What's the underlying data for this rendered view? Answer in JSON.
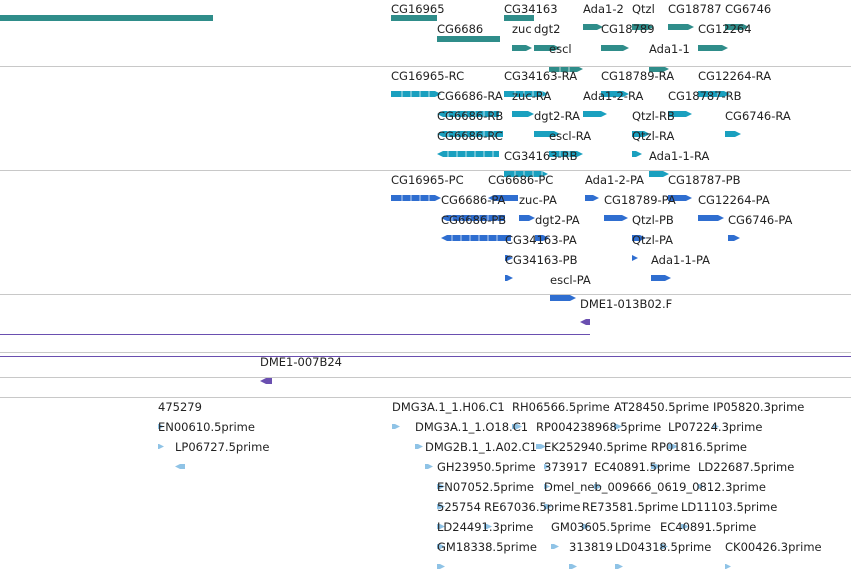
{
  "colors": {
    "gene": "#2f8d8a",
    "mrna": "#1aa0bf",
    "cds": "#2f6ed0",
    "clone": "#6a4fb0",
    "est": "#8fc3e6"
  },
  "tracks": [
    {
      "name": "gene",
      "features": [
        {
          "label": "",
          "icon": "bar"
        },
        {
          "label": "CG16965",
          "icon": "bar"
        },
        {
          "label": "CG34163",
          "icon": "bar"
        },
        {
          "label": "Ada1-2",
          "icon": "arrow-right"
        },
        {
          "label": "Qtzl",
          "icon": "arrow-right"
        },
        {
          "label": "CG18787",
          "icon": "arrow-right"
        },
        {
          "label": "CG6746",
          "icon": "arrow-right"
        },
        {
          "label": "CG6686",
          "icon": "bar"
        },
        {
          "label": "zuc",
          "icon": "arrow-right"
        },
        {
          "label": "dgt2",
          "icon": "arrow-right"
        },
        {
          "label": "CG18789",
          "icon": "arrow-right"
        },
        {
          "label": "CG12264",
          "icon": "arrow-right"
        },
        {
          "label": "escl",
          "icon": "arrow-right"
        },
        {
          "label": "Ada1-1",
          "icon": "arrow-right"
        }
      ]
    },
    {
      "name": "mrna",
      "features": [
        {
          "label": "CG16965-RC",
          "icon": "arrow-right"
        },
        {
          "label": "CG34163-RA",
          "icon": "arrow-right"
        },
        {
          "label": "CG18789-RA",
          "icon": "arrow-right"
        },
        {
          "label": "CG12264-RA",
          "icon": "arrow-right"
        },
        {
          "label": "CG6686-RA",
          "icon": "arrow-left"
        },
        {
          "label": "zuc-RA",
          "icon": "arrow-right"
        },
        {
          "label": "Ada1-2-RA",
          "icon": "arrow-right"
        },
        {
          "label": "CG18787-RB",
          "icon": "arrow-right"
        },
        {
          "label": "CG6686-RB",
          "icon": "arrow-left"
        },
        {
          "label": "dgt2-RA",
          "icon": "arrow-right"
        },
        {
          "label": "Qtzl-RB",
          "icon": "arrow-right"
        },
        {
          "label": "CG6746-RA",
          "icon": "arrow-right"
        },
        {
          "label": "CG6686-RC",
          "icon": "arrow-left"
        },
        {
          "label": "escl-RA",
          "icon": "arrow-right"
        },
        {
          "label": "Qtzl-RA",
          "icon": "arrow-right"
        },
        {
          "label": "CG34163-RB",
          "icon": "arrow-right"
        },
        {
          "label": "Ada1-1-RA",
          "icon": "arrow-right"
        }
      ]
    },
    {
      "name": "cds",
      "features": [
        {
          "label": "CG16965-PC",
          "icon": "arrow-right"
        },
        {
          "label": "CG6686-PC",
          "icon": "arrow-left"
        },
        {
          "label": "Ada1-2-PA",
          "icon": "arrow-right"
        },
        {
          "label": "CG18787-PB",
          "icon": "arrow-right"
        },
        {
          "label": "CG6686-PA",
          "icon": "arrow-left"
        },
        {
          "label": "zuc-PA",
          "icon": "arrow-right"
        },
        {
          "label": "CG18789-PA",
          "icon": "arrow-right"
        },
        {
          "label": "CG12264-PA",
          "icon": "arrow-right"
        },
        {
          "label": "CG6686-PB",
          "icon": "arrow-left"
        },
        {
          "label": "dgt2-PA",
          "icon": "arrow-right"
        },
        {
          "label": "Qtzl-PB",
          "icon": "arrow-right"
        },
        {
          "label": "CG6746-PA",
          "icon": "arrow-right"
        },
        {
          "label": "CG34163-PA",
          "icon": "arrow-right"
        },
        {
          "label": "Qtzl-PA",
          "icon": "arrow-right"
        },
        {
          "label": "CG34163-PB",
          "icon": "arrow-right"
        },
        {
          "label": "Ada1-1-PA",
          "icon": "arrow-right"
        },
        {
          "label": "escl-PA",
          "icon": "arrow-right"
        }
      ]
    },
    {
      "name": "clone-a",
      "features": [
        {
          "label": "DME1-013B02.F",
          "icon": "arrow-left"
        },
        {
          "label": "",
          "icon": "line"
        }
      ]
    },
    {
      "name": "clone-b",
      "features": [
        {
          "label": "",
          "icon": "line"
        },
        {
          "label": "DME1-007B24",
          "icon": "arrow-left"
        }
      ]
    },
    {
      "name": "empty",
      "features": []
    },
    {
      "name": "est",
      "features": [
        {
          "label": "475279",
          "icon": "arrow-right"
        },
        {
          "label": "EN00610.5prime",
          "icon": "arrow-right"
        },
        {
          "label": "LP06727.5prime",
          "icon": "arrow-left"
        },
        {
          "label": "DMG3A.1_1.H06.C1",
          "icon": "arrow-right"
        },
        {
          "label": "RH06566.5prime",
          "icon": "arrow-right"
        },
        {
          "label": "AT28450.5prime",
          "icon": "arrow-right"
        },
        {
          "label": "IP05820.3prime",
          "icon": "arrow-right"
        },
        {
          "label": "DMG3A.1_1.O18.C1",
          "icon": "arrow-right"
        },
        {
          "label": "RP004238968.5prime",
          "icon": "arrow-right"
        },
        {
          "label": "LP07224.3prime",
          "icon": "arrow-right"
        },
        {
          "label": "DMG2B.1_1.A02.C1",
          "icon": "arrow-right"
        },
        {
          "label": "EK252940.5prime",
          "icon": "arrow-right"
        },
        {
          "label": "RP01816.5prime",
          "icon": "arrow-right"
        },
        {
          "label": "GH23950.5prime",
          "icon": "arrow-right"
        },
        {
          "label": "373917",
          "icon": "arrow-right"
        },
        {
          "label": "EC40891.5prime",
          "icon": "arrow-right"
        },
        {
          "label": "LD22687.5prime",
          "icon": "arrow-right"
        },
        {
          "label": "EN07052.5prime",
          "icon": "arrow-right"
        },
        {
          "label": "Dmel_neb_009666_0619_0812.3prime",
          "icon": "arrow-right"
        },
        {
          "label": "525754",
          "icon": "arrow-right"
        },
        {
          "label": "RE67036.5prime",
          "icon": "arrow-right"
        },
        {
          "label": "RE73581.5prime",
          "icon": "arrow-right"
        },
        {
          "label": "LD11103.5prime",
          "icon": "arrow-right"
        },
        {
          "label": "LD24491.3prime",
          "icon": "arrow-right"
        },
        {
          "label": "GM03605.5prime",
          "icon": "arrow-right"
        },
        {
          "label": "EC40891.5prime",
          "icon": "arrow-right"
        },
        {
          "label": "GM18338.5prime",
          "icon": "arrow-right"
        },
        {
          "label": "313819",
          "icon": "arrow-right"
        },
        {
          "label": "LD04318.5prime",
          "icon": "arrow-right"
        },
        {
          "label": "CK00426.3prime",
          "icon": "arrow-right"
        }
      ]
    }
  ]
}
